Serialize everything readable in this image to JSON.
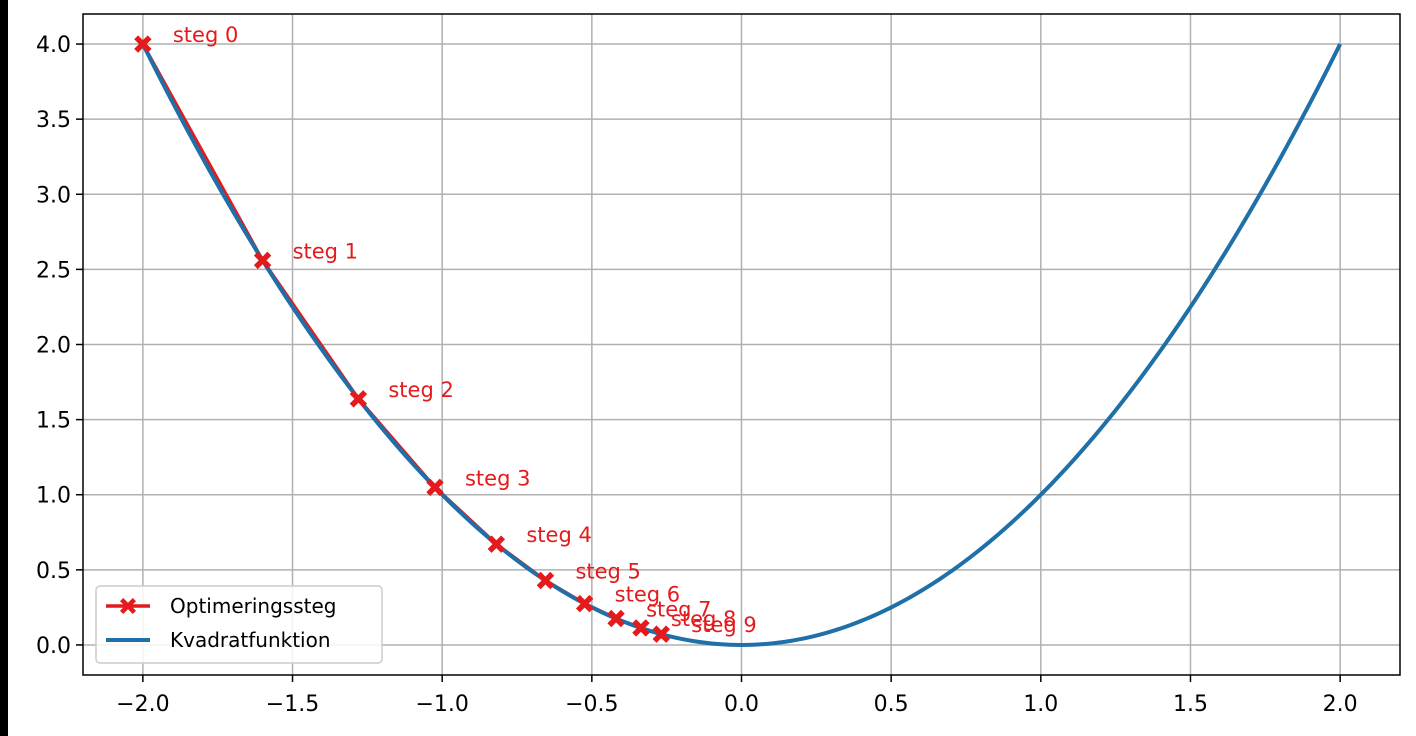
{
  "chart_data": {
    "type": "line",
    "title": "",
    "xlabel": "",
    "ylabel": "",
    "xlim": [
      -2.2,
      2.2
    ],
    "ylim": [
      -0.2,
      4.2
    ],
    "x_ticks": [
      -2.0,
      -1.5,
      -1.0,
      -0.5,
      0.0,
      0.5,
      1.0,
      1.5,
      2.0
    ],
    "x_tick_labels": [
      "−2.0",
      "−1.5",
      "−1.0",
      "−0.5",
      "0.0",
      "0.5",
      "1.0",
      "1.5",
      "2.0"
    ],
    "y_ticks": [
      0.0,
      0.5,
      1.0,
      1.5,
      2.0,
      2.5,
      3.0,
      3.5,
      4.0
    ],
    "y_tick_labels": [
      "0.0",
      "0.5",
      "1.0",
      "1.5",
      "2.0",
      "2.5",
      "3.0",
      "3.5",
      "4.0"
    ],
    "grid": true,
    "legend_position": "lower-left",
    "series": [
      {
        "name": "Optimeringssteg",
        "color": "#e41a1c",
        "marker": "X",
        "x": [
          -2.0,
          -1.6,
          -1.28,
          -1.024,
          -0.819,
          -0.655,
          -0.524,
          -0.419,
          -0.336,
          -0.268
        ],
        "y": [
          4.0,
          2.56,
          1.638,
          1.049,
          0.671,
          0.429,
          0.275,
          0.176,
          0.113,
          0.072
        ],
        "annotations": [
          "steg 0",
          "steg 1",
          "steg 2",
          "steg 3",
          "steg 4",
          "steg 5",
          "steg 6",
          "steg 7",
          "steg 8",
          "steg 9"
        ]
      },
      {
        "name": "Kvadratfunktion",
        "color": "#1f6fa8",
        "function": "x^2",
        "x_range": [
          -2.0,
          2.0
        ]
      }
    ]
  }
}
